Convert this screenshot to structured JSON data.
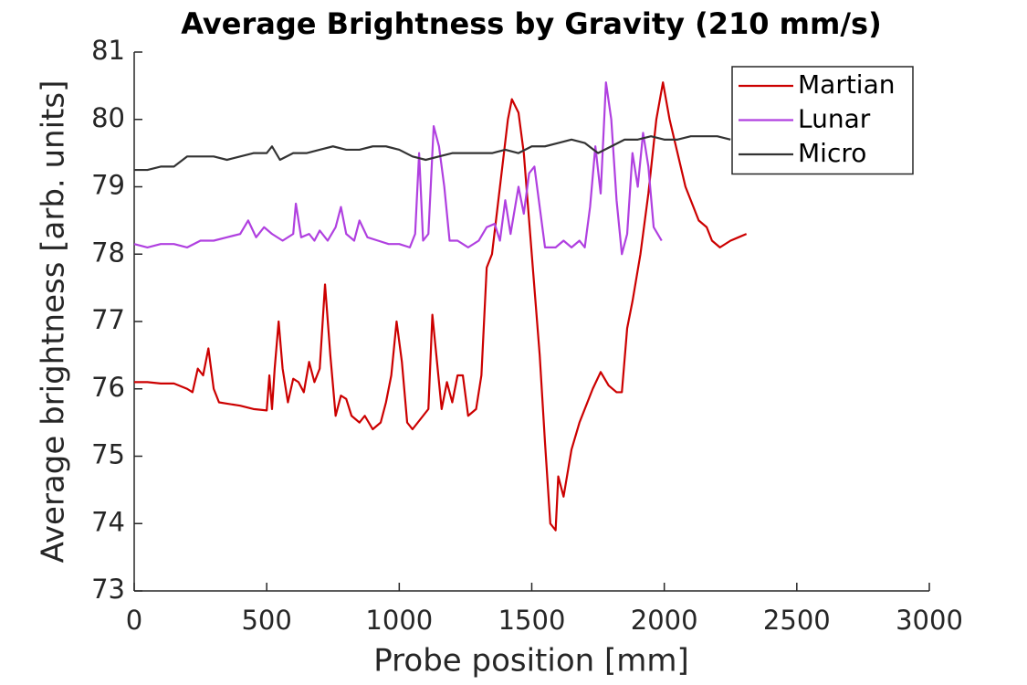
{
  "chart_data": {
    "type": "line",
    "title": "Average Brightness by Gravity (210 mm/s)",
    "x_label": "Probe position [mm]",
    "y_label": "Average brightness [arb. units]",
    "xlim": [
      0,
      3000
    ],
    "xticks": [
      0,
      500,
      1000,
      1500,
      2000,
      2500,
      3000
    ],
    "ylim": [
      73,
      81
    ],
    "yticks": [
      73,
      74,
      75,
      76,
      77,
      78,
      79,
      80,
      81
    ],
    "grid": false,
    "legend": "top-right",
    "series": [
      {
        "name": "Martian",
        "color": "#cc0000",
        "x": [
          0,
          50,
          100,
          150,
          200,
          220,
          240,
          260,
          280,
          300,
          320,
          350,
          400,
          450,
          500,
          510,
          520,
          530,
          545,
          560,
          580,
          600,
          620,
          640,
          660,
          680,
          700,
          720,
          740,
          760,
          780,
          800,
          820,
          850,
          870,
          900,
          930,
          950,
          970,
          990,
          1010,
          1030,
          1050,
          1070,
          1090,
          1110,
          1125,
          1140,
          1160,
          1180,
          1200,
          1220,
          1240,
          1260,
          1290,
          1310,
          1330,
          1350,
          1380,
          1410,
          1425,
          1450,
          1470,
          1490,
          1510,
          1530,
          1550,
          1570,
          1590,
          1600,
          1620,
          1650,
          1680,
          1700,
          1730,
          1760,
          1790,
          1820,
          1840,
          1860,
          1880,
          1910,
          1940,
          1970,
          1995,
          2020,
          2050,
          2080,
          2100,
          2130,
          2160,
          2180,
          2210,
          2250,
          2280,
          2310
        ],
        "values": [
          76.1,
          76.1,
          76.08,
          76.08,
          76.0,
          75.95,
          76.3,
          76.2,
          76.6,
          76.0,
          75.8,
          75.78,
          75.75,
          75.7,
          75.68,
          76.2,
          75.7,
          76.3,
          77.0,
          76.3,
          75.8,
          76.15,
          76.1,
          75.95,
          76.4,
          76.1,
          76.3,
          77.55,
          76.5,
          75.6,
          75.9,
          75.85,
          75.6,
          75.5,
          75.6,
          75.4,
          75.5,
          75.8,
          76.2,
          77.0,
          76.4,
          75.5,
          75.4,
          75.5,
          75.6,
          75.7,
          77.1,
          76.5,
          75.7,
          76.1,
          75.8,
          76.2,
          76.2,
          75.6,
          75.7,
          76.2,
          77.8,
          78.0,
          79.0,
          80.0,
          80.3,
          80.1,
          79.5,
          78.5,
          77.5,
          76.5,
          75.2,
          74.0,
          73.9,
          74.7,
          74.4,
          75.1,
          75.5,
          75.7,
          76.0,
          76.25,
          76.05,
          75.95,
          75.95,
          76.9,
          77.3,
          78.0,
          78.9,
          80.0,
          80.55,
          80.0,
          79.5,
          79.0,
          78.8,
          78.5,
          78.4,
          78.2,
          78.1,
          78.2,
          78.25,
          78.3
        ]
      },
      {
        "name": "Lunar",
        "color": "#b040e0",
        "x": [
          0,
          50,
          100,
          150,
          200,
          250,
          300,
          350,
          400,
          430,
          460,
          490,
          520,
          560,
          600,
          610,
          630,
          660,
          680,
          700,
          730,
          760,
          780,
          800,
          830,
          850,
          880,
          920,
          960,
          1000,
          1040,
          1060,
          1075,
          1090,
          1110,
          1130,
          1150,
          1170,
          1190,
          1220,
          1260,
          1300,
          1330,
          1360,
          1380,
          1400,
          1420,
          1450,
          1470,
          1490,
          1510,
          1530,
          1550,
          1590,
          1620,
          1650,
          1680,
          1700,
          1720,
          1740,
          1760,
          1780,
          1800,
          1820,
          1840,
          1860,
          1880,
          1900,
          1920,
          1940,
          1960,
          1990
        ],
        "values": [
          78.15,
          78.1,
          78.15,
          78.15,
          78.1,
          78.2,
          78.2,
          78.25,
          78.3,
          78.5,
          78.25,
          78.4,
          78.3,
          78.2,
          78.3,
          78.75,
          78.25,
          78.3,
          78.2,
          78.35,
          78.2,
          78.4,
          78.7,
          78.3,
          78.2,
          78.5,
          78.25,
          78.2,
          78.15,
          78.15,
          78.1,
          78.3,
          79.5,
          78.2,
          78.3,
          79.9,
          79.6,
          79.0,
          78.2,
          78.2,
          78.1,
          78.2,
          78.4,
          78.45,
          78.2,
          78.8,
          78.3,
          79.0,
          78.6,
          79.2,
          79.3,
          78.7,
          78.1,
          78.1,
          78.2,
          78.1,
          78.2,
          78.1,
          78.7,
          79.6,
          78.9,
          80.55,
          80.0,
          78.8,
          78.0,
          78.3,
          79.5,
          79.0,
          79.8,
          79.3,
          78.4,
          78.2
        ]
      },
      {
        "name": "Micro",
        "color": "#333333",
        "x": [
          0,
          50,
          100,
          150,
          200,
          250,
          300,
          350,
          400,
          450,
          500,
          520,
          550,
          600,
          650,
          700,
          750,
          800,
          850,
          900,
          950,
          1000,
          1050,
          1100,
          1150,
          1200,
          1250,
          1300,
          1350,
          1400,
          1450,
          1500,
          1550,
          1600,
          1650,
          1700,
          1750,
          1800,
          1850,
          1900,
          1950,
          2000,
          2050,
          2100,
          2150,
          2200,
          2250
        ],
        "values": [
          79.25,
          79.25,
          79.3,
          79.3,
          79.45,
          79.45,
          79.45,
          79.4,
          79.45,
          79.5,
          79.5,
          79.6,
          79.4,
          79.5,
          79.5,
          79.55,
          79.6,
          79.55,
          79.55,
          79.6,
          79.6,
          79.55,
          79.45,
          79.4,
          79.45,
          79.5,
          79.5,
          79.5,
          79.5,
          79.55,
          79.5,
          79.6,
          79.6,
          79.65,
          79.7,
          79.65,
          79.5,
          79.6,
          79.7,
          79.7,
          79.75,
          79.7,
          79.7,
          79.75,
          79.75,
          79.75,
          79.7
        ]
      }
    ]
  }
}
